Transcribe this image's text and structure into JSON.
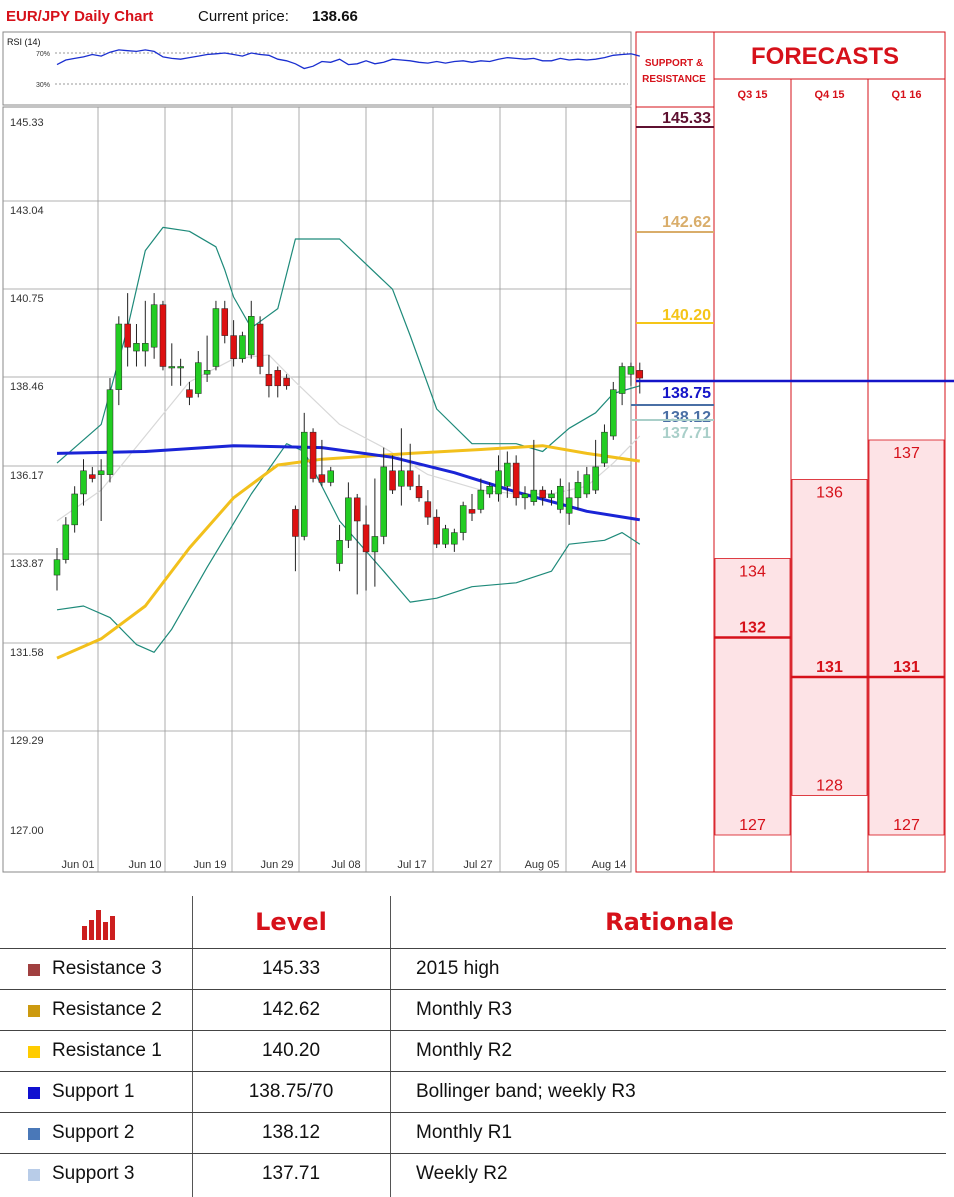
{
  "header": {
    "title": "EUR/JPY Daily Chart",
    "price_label": "Current price:",
    "price_value": "138.66"
  },
  "rsi": {
    "label": "RSI (14)",
    "levels": [
      "70%",
      "30%"
    ]
  },
  "chart_data": {
    "type": "candlestick",
    "title": "EUR/JPY Daily Chart",
    "y_ticks": [
      "145.33",
      "143.04",
      "140.75",
      "138.46",
      "136.17",
      "133.87",
      "131.58",
      "129.29",
      "127.00"
    ],
    "ylim": [
      127.0,
      145.33
    ],
    "x_ticks": [
      "Jun 01",
      "Jun 10",
      "Jun 19",
      "Jun 29",
      "Jul 08",
      "Jul 17",
      "Jul 27",
      "Aug 05",
      "Aug 14"
    ],
    "candles": [
      {
        "o": 133.6,
        "h": 134.3,
        "l": 133.2,
        "c": 134.0
      },
      {
        "o": 134.0,
        "h": 135.1,
        "l": 133.9,
        "c": 134.9
      },
      {
        "o": 134.9,
        "h": 135.9,
        "l": 134.7,
        "c": 135.7
      },
      {
        "o": 135.7,
        "h": 136.6,
        "l": 135.4,
        "c": 136.3
      },
      {
        "o": 136.2,
        "h": 136.4,
        "l": 136.0,
        "c": 136.1
      },
      {
        "o": 136.2,
        "h": 136.6,
        "l": 135.0,
        "c": 136.3
      },
      {
        "o": 136.2,
        "h": 138.7,
        "l": 136.0,
        "c": 138.4
      },
      {
        "o": 138.4,
        "h": 140.3,
        "l": 138.0,
        "c": 140.1
      },
      {
        "o": 140.1,
        "h": 140.9,
        "l": 139.0,
        "c": 139.5
      },
      {
        "o": 139.4,
        "h": 140.1,
        "l": 139.0,
        "c": 139.6
      },
      {
        "o": 139.4,
        "h": 140.7,
        "l": 139.0,
        "c": 139.6
      },
      {
        "o": 139.5,
        "h": 140.9,
        "l": 139.2,
        "c": 140.6
      },
      {
        "o": 140.6,
        "h": 140.7,
        "l": 138.9,
        "c": 139.0
      },
      {
        "o": 139.0,
        "h": 139.6,
        "l": 138.5,
        "c": 139.0
      },
      {
        "o": 139.0,
        "h": 139.2,
        "l": 138.5,
        "c": 139.0
      },
      {
        "o": 138.4,
        "h": 138.6,
        "l": 138.0,
        "c": 138.2
      },
      {
        "o": 138.3,
        "h": 139.4,
        "l": 138.2,
        "c": 139.1
      },
      {
        "o": 138.8,
        "h": 139.8,
        "l": 138.6,
        "c": 138.9
      },
      {
        "o": 139.0,
        "h": 140.7,
        "l": 138.9,
        "c": 140.5
      },
      {
        "o": 140.5,
        "h": 140.7,
        "l": 139.6,
        "c": 139.8
      },
      {
        "o": 139.8,
        "h": 140.2,
        "l": 139.0,
        "c": 139.2
      },
      {
        "o": 139.2,
        "h": 139.9,
        "l": 139.1,
        "c": 139.8
      },
      {
        "o": 139.3,
        "h": 140.7,
        "l": 139.2,
        "c": 140.3
      },
      {
        "o": 140.1,
        "h": 140.3,
        "l": 138.8,
        "c": 139.0
      },
      {
        "o": 138.8,
        "h": 139.3,
        "l": 138.2,
        "c": 138.5
      },
      {
        "o": 138.9,
        "h": 139.0,
        "l": 138.2,
        "c": 138.5
      },
      {
        "o": 138.7,
        "h": 138.8,
        "l": 138.4,
        "c": 138.5
      },
      {
        "o": 135.3,
        "h": 135.4,
        "l": 133.7,
        "c": 134.6
      },
      {
        "o": 134.6,
        "h": 137.8,
        "l": 134.5,
        "c": 137.3
      },
      {
        "o": 137.3,
        "h": 137.4,
        "l": 136.0,
        "c": 136.1
      },
      {
        "o": 136.2,
        "h": 137.1,
        "l": 135.9,
        "c": 136.0
      },
      {
        "o": 136.0,
        "h": 136.4,
        "l": 135.9,
        "c": 136.3
      },
      {
        "o": 133.9,
        "h": 134.9,
        "l": 133.7,
        "c": 134.5
      },
      {
        "o": 134.5,
        "h": 136.0,
        "l": 134.3,
        "c": 135.6
      },
      {
        "o": 135.6,
        "h": 135.7,
        "l": 133.1,
        "c": 135.0
      },
      {
        "o": 134.9,
        "h": 135.4,
        "l": 133.2,
        "c": 134.2
      },
      {
        "o": 134.2,
        "h": 136.1,
        "l": 133.3,
        "c": 134.6
      },
      {
        "o": 134.6,
        "h": 136.9,
        "l": 134.4,
        "c": 136.4
      },
      {
        "o": 136.3,
        "h": 136.7,
        "l": 135.7,
        "c": 135.8
      },
      {
        "o": 135.9,
        "h": 137.4,
        "l": 135.4,
        "c": 136.3
      },
      {
        "o": 136.3,
        "h": 137.0,
        "l": 135.8,
        "c": 135.9
      },
      {
        "o": 135.9,
        "h": 136.2,
        "l": 135.5,
        "c": 135.6
      },
      {
        "o": 135.5,
        "h": 135.8,
        "l": 134.9,
        "c": 135.1
      },
      {
        "o": 135.1,
        "h": 135.3,
        "l": 134.3,
        "c": 134.4
      },
      {
        "o": 134.4,
        "h": 134.9,
        "l": 134.3,
        "c": 134.8
      },
      {
        "o": 134.4,
        "h": 134.8,
        "l": 134.2,
        "c": 134.7
      },
      {
        "o": 134.7,
        "h": 135.5,
        "l": 134.5,
        "c": 135.4
      },
      {
        "o": 135.3,
        "h": 135.7,
        "l": 135.0,
        "c": 135.2
      },
      {
        "o": 135.3,
        "h": 136.1,
        "l": 135.2,
        "c": 135.8
      },
      {
        "o": 135.7,
        "h": 136.0,
        "l": 135.6,
        "c": 135.9
      },
      {
        "o": 135.7,
        "h": 136.7,
        "l": 135.5,
        "c": 136.3
      },
      {
        "o": 135.9,
        "h": 136.8,
        "l": 135.6,
        "c": 136.5
      },
      {
        "o": 136.5,
        "h": 136.7,
        "l": 135.4,
        "c": 135.6
      },
      {
        "o": 135.6,
        "h": 135.9,
        "l": 135.3,
        "c": 135.7
      },
      {
        "o": 135.5,
        "h": 137.1,
        "l": 135.4,
        "c": 135.8
      },
      {
        "o": 135.8,
        "h": 135.9,
        "l": 135.4,
        "c": 135.6
      },
      {
        "o": 135.6,
        "h": 135.8,
        "l": 135.4,
        "c": 135.7
      },
      {
        "o": 135.3,
        "h": 136.1,
        "l": 135.2,
        "c": 135.9
      },
      {
        "o": 135.2,
        "h": 136.0,
        "l": 134.9,
        "c": 135.6
      },
      {
        "o": 135.6,
        "h": 136.3,
        "l": 135.3,
        "c": 136.0
      },
      {
        "o": 135.7,
        "h": 136.4,
        "l": 135.6,
        "c": 136.2
      },
      {
        "o": 135.8,
        "h": 137.1,
        "l": 135.7,
        "c": 136.4
      },
      {
        "o": 136.5,
        "h": 137.5,
        "l": 136.4,
        "c": 137.3
      },
      {
        "o": 137.2,
        "h": 138.6,
        "l": 137.1,
        "c": 138.4
      },
      {
        "o": 138.3,
        "h": 139.1,
        "l": 138.0,
        "c": 139.0
      },
      {
        "o": 138.8,
        "h": 139.1,
        "l": 138.5,
        "c": 139.0
      },
      {
        "o": 138.9,
        "h": 139.1,
        "l": 138.3,
        "c": 138.7
      }
    ],
    "sma_blue": [
      [
        0,
        136.75
      ],
      [
        10,
        136.8
      ],
      [
        20,
        136.95
      ],
      [
        30,
        136.9
      ],
      [
        38,
        136.65
      ],
      [
        45,
        136.25
      ],
      [
        52,
        135.75
      ],
      [
        60,
        135.25
      ],
      [
        66,
        135.03
      ]
    ],
    "sma_yellow": [
      [
        0,
        131.45
      ],
      [
        5,
        131.95
      ],
      [
        10,
        132.8
      ],
      [
        15,
        134.3
      ],
      [
        20,
        135.6
      ],
      [
        25,
        136.45
      ],
      [
        30,
        136.6
      ],
      [
        40,
        136.75
      ],
      [
        48,
        136.85
      ],
      [
        55,
        136.95
      ],
      [
        60,
        136.75
      ],
      [
        66,
        136.55
      ]
    ],
    "boll_upper": [
      [
        0,
        136.5
      ],
      [
        5,
        137.5
      ],
      [
        8,
        140.0
      ],
      [
        10,
        142.0
      ],
      [
        12,
        142.6
      ],
      [
        15,
        142.5
      ],
      [
        18,
        142.1
      ],
      [
        19,
        141.5
      ],
      [
        20,
        140.8
      ],
      [
        22,
        140.0
      ],
      [
        25,
        140.5
      ],
      [
        27,
        142.3
      ],
      [
        32,
        142.3
      ],
      [
        38,
        141.0
      ],
      [
        40,
        139.8
      ],
      [
        43,
        137.9
      ],
      [
        47,
        137.0
      ],
      [
        52,
        137.0
      ],
      [
        55,
        136.8
      ],
      [
        58,
        137.4
      ],
      [
        61,
        137.8
      ],
      [
        63,
        138.3
      ],
      [
        66,
        138.5
      ]
    ],
    "boll_mid": [
      [
        0,
        135.0
      ],
      [
        5,
        135.8
      ],
      [
        10,
        137.2
      ],
      [
        15,
        138.6
      ],
      [
        20,
        139.2
      ],
      [
        24,
        139.3
      ],
      [
        27,
        138.6
      ],
      [
        32,
        137.5
      ],
      [
        37,
        136.9
      ],
      [
        42,
        136.2
      ],
      [
        48,
        135.8
      ],
      [
        52,
        135.7
      ],
      [
        56,
        135.7
      ],
      [
        60,
        135.9
      ],
      [
        63,
        136.5
      ],
      [
        66,
        137.2
      ]
    ],
    "boll_lower": [
      [
        0,
        132.7
      ],
      [
        3,
        132.8
      ],
      [
        6,
        132.5
      ],
      [
        9,
        131.8
      ],
      [
        11,
        131.6
      ],
      [
        13,
        132.2
      ],
      [
        17,
        133.8
      ],
      [
        22,
        135.7
      ],
      [
        26,
        137.0
      ],
      [
        28,
        136.8
      ],
      [
        32,
        135.0
      ],
      [
        37,
        133.7
      ],
      [
        40,
        132.9
      ],
      [
        43,
        133.0
      ],
      [
        47,
        133.3
      ],
      [
        52,
        133.4
      ],
      [
        56,
        133.7
      ],
      [
        58,
        134.4
      ],
      [
        62,
        134.5
      ],
      [
        64,
        134.7
      ],
      [
        66,
        134.4
      ]
    ],
    "support_resistance": [
      {
        "label": "145.33",
        "value": 145.33,
        "color": "#5e1030"
      },
      {
        "label": "142.62",
        "value": 142.62,
        "color": "#d9ad6a"
      },
      {
        "label": "140.20",
        "value": 140.2,
        "color": "#f5c518"
      },
      {
        "label": "138.75",
        "value": 138.75,
        "color": "#1414c8"
      },
      {
        "label": "138.12",
        "value": 138.12,
        "color": "#4a6fa5"
      },
      {
        "label": "137.71",
        "value": 137.71,
        "color": "#a9cfc9"
      }
    ],
    "forecasts": {
      "columns": [
        "Q3 15",
        "Q4 15",
        "Q1 16"
      ],
      "values": [
        {
          "high": 134,
          "mid": 132,
          "low": 127
        },
        {
          "high": 136,
          "mid": 131,
          "low": 128
        },
        {
          "high": 137,
          "mid": 131,
          "low": 127
        }
      ]
    }
  },
  "rsi_values": [
    55,
    61,
    63,
    65,
    68,
    66,
    71,
    74,
    73,
    72,
    74,
    72,
    65,
    63,
    62,
    64,
    66,
    68,
    69,
    70,
    68,
    66,
    70,
    68,
    67,
    62,
    60,
    56,
    50,
    53,
    59,
    58,
    62,
    55,
    56,
    60,
    56,
    58,
    62,
    61,
    60,
    58,
    57,
    59,
    57,
    59,
    60,
    58,
    60,
    59,
    62,
    64,
    63,
    62,
    63,
    60,
    60,
    63,
    61,
    62,
    61,
    62,
    64,
    67,
    68,
    69,
    66
  ],
  "panel": {
    "sr_title": "SUPPORT & RESISTANCE",
    "forecasts_title": "FORECASTS"
  },
  "table": {
    "headers": {
      "level": "Level",
      "rationale": "Rationale"
    },
    "rows": [
      {
        "name": "Resistance 3",
        "level": "145.33",
        "rationale": "2015 high",
        "color": "#a04040"
      },
      {
        "name": "Resistance 2",
        "level": "142.62",
        "rationale": "Monthly R3",
        "color": "#cc9a10"
      },
      {
        "name": "Resistance 1",
        "level": "140.20",
        "rationale": "Monthly R2",
        "color": "#ffcc00"
      },
      {
        "name": "Support 1",
        "level": "138.75/70",
        "rationale": "Bollinger band; weekly R3",
        "color": "#1010d0"
      },
      {
        "name": "Support 2",
        "level": "138.12",
        "rationale": "Monthly R1",
        "color": "#4a78b8"
      },
      {
        "name": "Support 3",
        "level": "137.71",
        "rationale": "Weekly R2",
        "color": "#b8cce8"
      }
    ]
  },
  "colors": {
    "bull": "#22cc22",
    "bear": "#dd1111",
    "band": "#1e8a7a",
    "forecast_red": "#d6111a",
    "forecast_fill": "#fde3e6"
  }
}
